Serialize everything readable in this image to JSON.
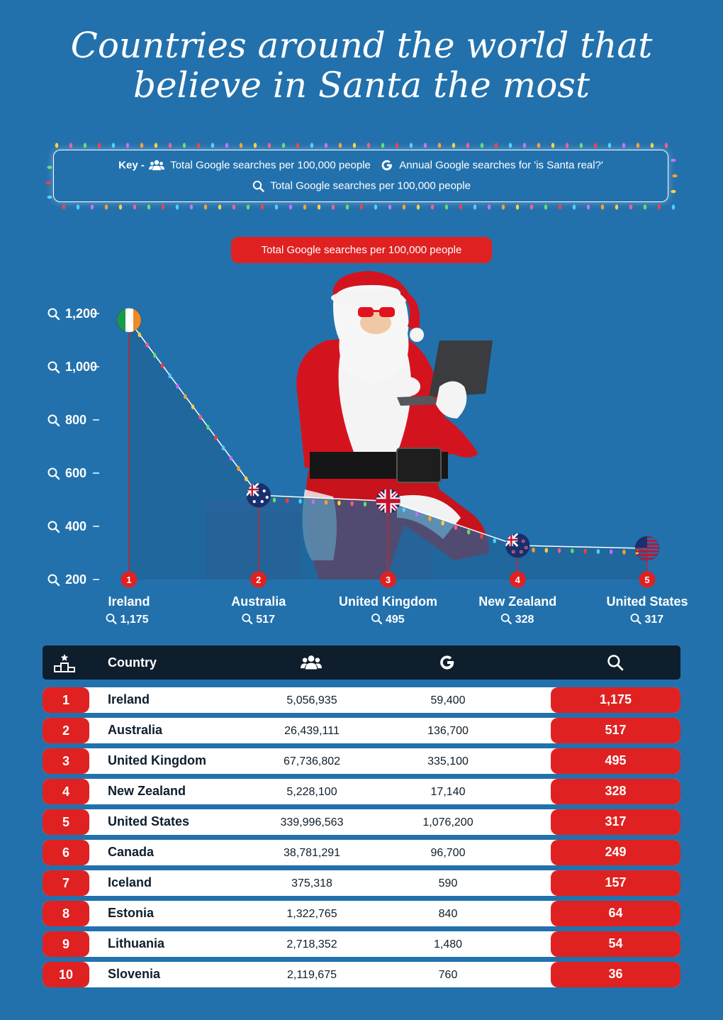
{
  "title_lines": [
    "Countries around the world that",
    "believe in Santa the most"
  ],
  "key": {
    "prefix": "Key -",
    "population_label": "Total Google searches per 100,000 people",
    "google_label": "Annual Google searches for 'is Santa real?'",
    "search_label": "Total Google searches per 100,000 people",
    "population_icon": "people-icon",
    "google_icon": "google-g-icon",
    "search_icon": "search-icon"
  },
  "chart_title": "Total Google searches per 100,000 people",
  "chart_data": {
    "type": "area",
    "title": "Total Google searches per 100,000 people",
    "y_ticks": [
      "1,200",
      "1,000",
      "800",
      "600",
      "400",
      "200"
    ],
    "ylim": [
      200,
      1200
    ],
    "grid": false,
    "categories": [
      "Ireland",
      "Australia",
      "United Kingdom",
      "New Zealand",
      "United States"
    ],
    "values": [
      1175,
      517,
      495,
      328,
      317
    ],
    "value_labels": [
      "1,175",
      "517",
      "495",
      "328",
      "317"
    ],
    "ranks": [
      "1",
      "2",
      "3",
      "4",
      "5"
    ],
    "flags": [
      "ireland-flag",
      "australia-flag",
      "uk-flag",
      "new-zealand-flag",
      "usa-flag"
    ],
    "colors": {
      "area": "#1f6496",
      "line": "#ffffff",
      "badge": "#e02121"
    }
  },
  "table": {
    "headers": {
      "rank_icon": "podium-icon",
      "country": "Country",
      "population_icon": "people-icon",
      "google_icon": "google-g-icon",
      "search_icon": "search-icon"
    },
    "rows": [
      {
        "rank": "1",
        "country": "Ireland",
        "population": "5,056,935",
        "google": "59,400",
        "per100k": "1,175"
      },
      {
        "rank": "2",
        "country": "Australia",
        "population": "26,439,111",
        "google": "136,700",
        "per100k": "517"
      },
      {
        "rank": "3",
        "country": "United Kingdom",
        "population": "67,736,802",
        "google": "335,100",
        "per100k": "495"
      },
      {
        "rank": "4",
        "country": "New Zealand",
        "population": "5,228,100",
        "google": "17,140",
        "per100k": "328"
      },
      {
        "rank": "5",
        "country": "United States",
        "population": "339,996,563",
        "google": "1,076,200",
        "per100k": "317"
      },
      {
        "rank": "6",
        "country": "Canada",
        "population": "38,781,291",
        "google": "96,700",
        "per100k": "249"
      },
      {
        "rank": "7",
        "country": "Iceland",
        "population": "375,318",
        "google": "590",
        "per100k": "157"
      },
      {
        "rank": "8",
        "country": "Estonia",
        "population": "1,322,765",
        "google": "840",
        "per100k": "64"
      },
      {
        "rank": "9",
        "country": "Lithuania",
        "population": "2,718,352",
        "google": "1,480",
        "per100k": "54"
      },
      {
        "rank": "10",
        "country": "Slovenia",
        "population": "2,119,675",
        "google": "760",
        "per100k": "36"
      }
    ]
  },
  "colors": {
    "background": "#2271ad",
    "accent": "#e02121",
    "table_header": "#0e1e2c",
    "text": "#ffffff"
  }
}
